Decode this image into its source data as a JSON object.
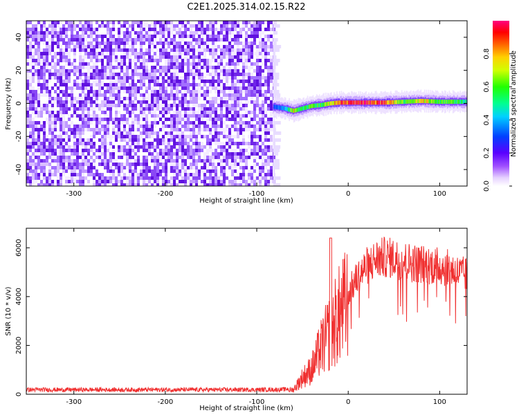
{
  "title": "C2E1.2025.314.02.15.R22",
  "chart_data": [
    {
      "type": "heatmap",
      "name": "spectrogram",
      "xlabel": "Height of straight line (km)",
      "ylabel": "Frequency (Hz)",
      "xlim": [
        -352,
        130
      ],
      "ylim": [
        -50,
        50
      ],
      "xticks": [
        -300,
        -200,
        -100,
        0,
        100
      ],
      "yticks": [
        -40,
        -20,
        0,
        20,
        40
      ],
      "noise_region_x": [
        -352,
        -82
      ],
      "signal_track": {
        "x": [
          -82,
          -70,
          -60,
          -50,
          -40,
          -30,
          -20,
          -10,
          0,
          20,
          40,
          60,
          80,
          100,
          120,
          130
        ],
        "freq": [
          -2,
          -3,
          -4.5,
          -3,
          -1.5,
          -1,
          0,
          0.5,
          0.5,
          0.5,
          0.5,
          1,
          1.5,
          1,
          1,
          1
        ],
        "amplitude": [
          0.3,
          0.35,
          0.75,
          0.5,
          0.6,
          0.55,
          0.75,
          0.85,
          0.9,
          0.95,
          0.85,
          0.6,
          0.75,
          0.6,
          0.55,
          0.5
        ]
      },
      "colorbar": {
        "label": "Normalized spectral amplitude",
        "range": [
          0,
          1
        ],
        "ticks": [
          "0.0",
          "0.2",
          "0.4",
          "0.6",
          "0.8"
        ]
      }
    },
    {
      "type": "line",
      "name": "snr",
      "xlabel": "Height of straight line (km)",
      "ylabel": "SNR (10 * v/v)",
      "xlim": [
        -352,
        130
      ],
      "ylim": [
        0,
        6800
      ],
      "xticks": [
        -300,
        -200,
        -100,
        0,
        100
      ],
      "yticks": [
        0,
        2000,
        4000,
        6000
      ],
      "color": "#f03030",
      "x": [
        -352,
        -100,
        -70,
        -60,
        -55,
        -50,
        -40,
        -30,
        -20,
        -10,
        0,
        10,
        20,
        30,
        40,
        50,
        60,
        70,
        80,
        90,
        100,
        110,
        120,
        130
      ],
      "y": [
        150,
        150,
        160,
        220,
        500,
        800,
        1200,
        2200,
        3000,
        3800,
        4500,
        5200,
        5700,
        6000,
        6100,
        6050,
        5950,
        5850,
        5800,
        5750,
        5700,
        5600,
        5400,
        5300
      ]
    }
  ]
}
